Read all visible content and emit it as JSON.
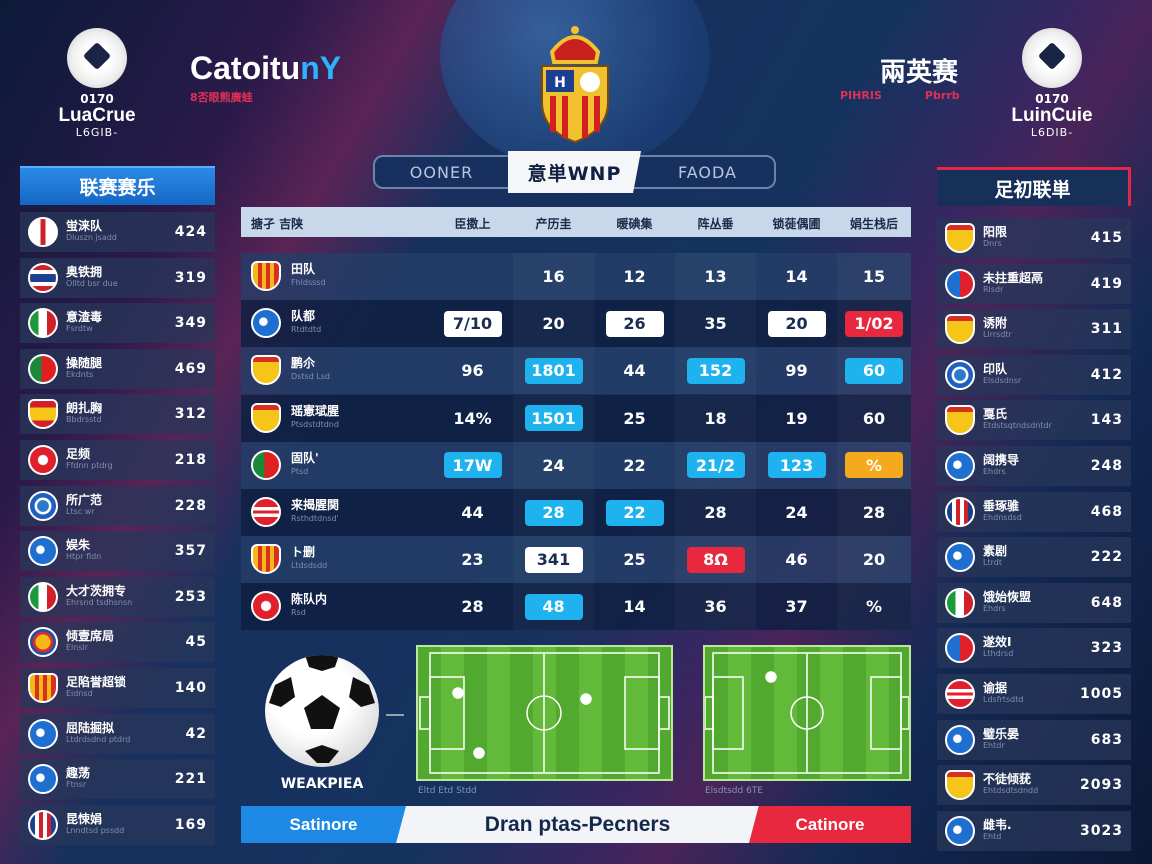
{
  "header": {
    "left_logo": {
      "mark": "0170",
      "name": "LuaCrue",
      "sub": "L6GIB-"
    },
    "right_logo": {
      "mark": "0170",
      "name": "LuinCuie",
      "sub": "L6DIB-"
    },
    "title_white": "Catoitu",
    "title_blue": "nY",
    "subtitle": "8否眼熊廣蛙",
    "right_title": "兩英赛",
    "right_sub_1": "PIHRIS",
    "right_sub_2": "Pbrrb"
  },
  "tabs": [
    {
      "label": "OONER",
      "active": false
    },
    {
      "label": "意単WNP",
      "active": true
    },
    {
      "label": "FAODA",
      "active": false
    }
  ],
  "left_panel": {
    "title": "联赛赛乐",
    "items": [
      {
        "name": "蛍涞队",
        "sub": "Dluszn jsadd",
        "value": "424",
        "badge": "uk"
      },
      {
        "name": "奥铁拥",
        "sub": "Olltd bsr due",
        "value": "319",
        "badge": "thai"
      },
      {
        "name": "意渣毒",
        "sub": "Fsrdtw",
        "value": "349",
        "badge": "italy"
      },
      {
        "name": "操随腿",
        "sub": "Ekdnts",
        "value": "469",
        "badge": "portugal"
      },
      {
        "name": "朗扎胸",
        "sub": "Bbdrsstd",
        "value": "312",
        "badge": "spain"
      },
      {
        "name": "足频",
        "sub": "Ffdnn ptdrg",
        "value": "218",
        "badge": "redcircle"
      },
      {
        "name": "所广范",
        "sub": "Ltsc wr",
        "value": "228",
        "badge": "ring"
      },
      {
        "name": "娱朱",
        "sub": "Htpr fldn",
        "value": "357",
        "badge": "globe"
      },
      {
        "name": "大才茨拥专",
        "sub": "Ehrsnd tsdhsnsn",
        "value": "253",
        "badge": "italy"
      },
      {
        "name": "倾壹席局",
        "sub": "Elnslr",
        "value": "45",
        "badge": "yellowblue"
      },
      {
        "name": "足陷誉超锁",
        "sub": "Eidnsd",
        "value": "140",
        "badge": "catalan"
      },
      {
        "name": "屈陆掘拟",
        "sub": "Ltdrdsdnd ptdrd",
        "value": "42",
        "badge": "globe"
      },
      {
        "name": "趣荡",
        "sub": "Ftnsr",
        "value": "221",
        "badge": "globe"
      },
      {
        "name": "昆悚娟",
        "sub": "Lnndtsd pssdd",
        "value": "169",
        "badge": "stripes"
      }
    ]
  },
  "right_panel": {
    "title": "足初联単",
    "items": [
      {
        "name": "阳限",
        "sub": "Dnrs",
        "value": "415",
        "badge": "yellowshield"
      },
      {
        "name": "未拄重超鬲",
        "sub": "Rlsdr",
        "value": "419",
        "badge": "bluered"
      },
      {
        "name": "诱附",
        "sub": "Llrrsdtr",
        "value": "311",
        "badge": "yellowshield"
      },
      {
        "name": "印队",
        "sub": "Elsdsdnsr",
        "value": "412",
        "badge": "ring"
      },
      {
        "name": "戛氏",
        "sub": "Etdstsqtndsdntdr",
        "value": "143",
        "badge": "yellowshield"
      },
      {
        "name": "阔携导",
        "sub": "Ehdrs",
        "value": "248",
        "badge": "globe"
      },
      {
        "name": "垂琢骓",
        "sub": "Ehdnsdsd",
        "value": "468",
        "badge": "stripes"
      },
      {
        "name": "素剧",
        "sub": "Ltrdt",
        "value": "222",
        "badge": "globe"
      },
      {
        "name": "饿始恢盟",
        "sub": "Ehdrs",
        "value": "648",
        "badge": "italy"
      },
      {
        "name": "遂效I",
        "sub": "Lthdrsd",
        "value": "323",
        "badge": "bluered"
      },
      {
        "name": "谕据",
        "sub": "Ldsfrtsdtd",
        "value": "1005",
        "badge": "redwhite"
      },
      {
        "name": "璧乐晏",
        "sub": "Ehtdr",
        "value": "683",
        "badge": "globe"
      },
      {
        "name": "不徒倾莸",
        "sub": "Ehtdsdtsdndd",
        "value": "2093",
        "badge": "yellowshield"
      },
      {
        "name": "雌韦.",
        "sub": "Ehtd",
        "value": "3023",
        "badge": "globe"
      }
    ]
  },
  "table": {
    "headers": [
      "搪孑 吉陕",
      "臣擞上",
      "产历圭",
      "暖碘集",
      "阵丛垂",
      "锁蓰偶圃",
      "娟生栈后"
    ],
    "rows": [
      {
        "name": "田队",
        "sub": "Fhldsssd",
        "badge": "catalan",
        "cells": [
          {
            "v": "",
            "s": "plain"
          },
          {
            "v": "16",
            "s": "plain"
          },
          {
            "v": "12",
            "s": "plain"
          },
          {
            "v": "13",
            "s": "plain"
          },
          {
            "v": "14",
            "s": "plain"
          },
          {
            "v": "15",
            "s": "plain"
          }
        ]
      },
      {
        "name": "队都",
        "sub": "Rtdtdtd",
        "badge": "globe",
        "cells": [
          {
            "v": "7/10",
            "s": "white"
          },
          {
            "v": "20",
            "s": "plain"
          },
          {
            "v": "26",
            "s": "white"
          },
          {
            "v": "35",
            "s": "plain"
          },
          {
            "v": "20",
            "s": "white"
          },
          {
            "v": "1/02",
            "s": "red"
          }
        ]
      },
      {
        "name": "鹏尒",
        "sub": "Dstsd Lsd",
        "badge": "yellowshield",
        "cells": [
          {
            "v": "96",
            "s": "plain"
          },
          {
            "v": "1801",
            "s": "blue"
          },
          {
            "v": "44",
            "s": "plain"
          },
          {
            "v": "152",
            "s": "blue"
          },
          {
            "v": "99",
            "s": "plain"
          },
          {
            "v": "60",
            "s": "blue"
          }
        ]
      },
      {
        "name": "瑶憲珷腥",
        "sub": "Ptsdstdtdnd",
        "badge": "yellowshield",
        "cells": [
          {
            "v": "14%",
            "s": "plain"
          },
          {
            "v": "1501",
            "s": "blue"
          },
          {
            "v": "25",
            "s": "plain"
          },
          {
            "v": "18",
            "s": "plain"
          },
          {
            "v": "19",
            "s": "plain"
          },
          {
            "v": "60",
            "s": "plain"
          }
        ]
      },
      {
        "name": "固队'",
        "sub": "Ptsd",
        "badge": "portugal",
        "cells": [
          {
            "v": "17W",
            "s": "blue"
          },
          {
            "v": "24",
            "s": "plain"
          },
          {
            "v": "22",
            "s": "plain"
          },
          {
            "v": "21/2",
            "s": "blue"
          },
          {
            "v": "123",
            "s": "blue"
          },
          {
            "v": "%",
            "s": "orange"
          }
        ]
      },
      {
        "name": "来揭腥関",
        "sub": "Rsthdtdnsd'",
        "badge": "redwhite",
        "cells": [
          {
            "v": "44",
            "s": "plain"
          },
          {
            "v": "28",
            "s": "blue"
          },
          {
            "v": "22",
            "s": "blue"
          },
          {
            "v": "28",
            "s": "plain"
          },
          {
            "v": "24",
            "s": "plain"
          },
          {
            "v": "28",
            "s": "plain"
          }
        ]
      },
      {
        "name": "ト删",
        "sub": "Ltdsdsdd",
        "badge": "catalan",
        "cells": [
          {
            "v": "23",
            "s": "plain"
          },
          {
            "v": "341",
            "s": "white"
          },
          {
            "v": "25",
            "s": "plain"
          },
          {
            "v": "8Ω",
            "s": "red"
          },
          {
            "v": "46",
            "s": "plain"
          },
          {
            "v": "20",
            "s": "plain"
          }
        ]
      },
      {
        "name": "陈队内",
        "sub": "Rsd",
        "badge": "redcircle",
        "cells": [
          {
            "v": "28",
            "s": "plain"
          },
          {
            "v": "48",
            "s": "blue"
          },
          {
            "v": "14",
            "s": "plain"
          },
          {
            "v": "36",
            "s": "plain"
          },
          {
            "v": "37",
            "s": "plain"
          },
          {
            "v": "%",
            "s": "plain"
          }
        ]
      }
    ]
  },
  "bottom": {
    "ball_label": "WEAKPIEA",
    "pitch1_caption": "Eltd Etd Stdd",
    "pitch2_caption": "Elsdtsdd 6TE",
    "bar_left": "Satinore",
    "bar_center": "Dran ptas-Pecners",
    "bar_right": "Catinore"
  },
  "colors": {
    "accent_blue": "#1eb2ef",
    "accent_red": "#e8283e",
    "accent_orange": "#f5a91c",
    "panel_bg": "#15325f"
  }
}
